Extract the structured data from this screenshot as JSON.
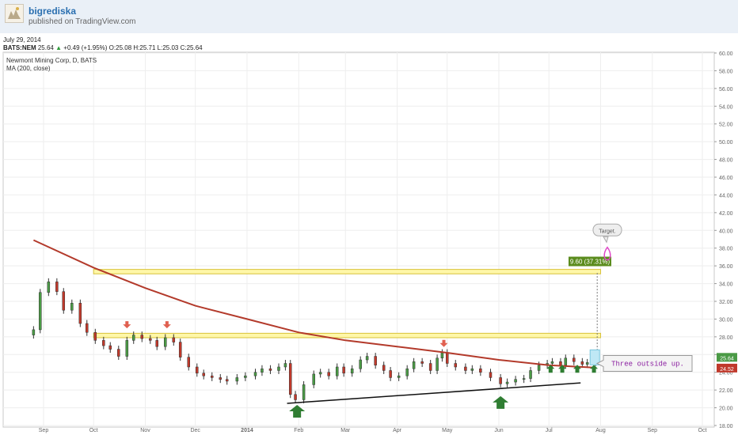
{
  "header": {
    "author": "bigrediska",
    "published": "published on TradingView.com",
    "date": "July 29, 2014",
    "symbol": "BATS:NEM",
    "last": "25.64",
    "change": "+0.49 (+1.95%)",
    "o_label": "O:",
    "o": "25.08",
    "h_label": "H:",
    "h": "25.71",
    "l_label": "L:",
    "l": "25.03",
    "c_label": "C:",
    "c": "25.64"
  },
  "legend": {
    "line1": "Newmont Mining Corp, D, BATS",
    "line2": "MA (200, close)"
  },
  "colors": {
    "up": "#4a9a45",
    "down": "#c0392b",
    "ma": "#b33a2b",
    "zone": "#fff7a8",
    "zone_border": "#d8c23a",
    "arrow_green": "#2f7d32",
    "arrow_red": "#e06050",
    "measure": "#5b8c1e",
    "callout_text": "#8a1ea0",
    "target_icon": "#e046c8"
  },
  "chart_data": {
    "type": "candlestick",
    "title": "Newmont Mining Corp, D, BATS",
    "xlabel": "",
    "ylabel": "",
    "ylim": [
      18,
      60
    ],
    "y_ticks": [
      "18.00",
      "20.00",
      "22.00",
      "24.00",
      "26.00",
      "28.00",
      "30.00",
      "32.00",
      "34.00",
      "36.00",
      "38.00",
      "40.00",
      "42.00",
      "44.00",
      "46.00",
      "48.00",
      "50.00",
      "52.00",
      "54.00",
      "56.00",
      "58.00",
      "60.00"
    ],
    "x_ticks": [
      "Sep",
      "Oct",
      "Nov",
      "Dec",
      "2014",
      "Feb",
      "Mar",
      "Apr",
      "May",
      "Jun",
      "Jul",
      "Aug",
      "Sep",
      "Oct"
    ],
    "x_tick_dates": [
      "2013-09-01",
      "2013-10-01",
      "2013-11-01",
      "2013-12-01",
      "2014-01-01",
      "2014-02-01",
      "2014-03-01",
      "2014-04-01",
      "2014-05-01",
      "2014-06-01",
      "2014-07-01",
      "2014-08-01",
      "2014-09-01",
      "2014-10-01"
    ],
    "price_close_series": [
      [
        "2013-08-26",
        28.8
      ],
      [
        "2013-08-30",
        33.0
      ],
      [
        "2013-09-04",
        34.2
      ],
      [
        "2013-09-09",
        33.1
      ],
      [
        "2013-09-13",
        31.0
      ],
      [
        "2013-09-18",
        31.8
      ],
      [
        "2013-09-23",
        29.5
      ],
      [
        "2013-09-27",
        28.5
      ],
      [
        "2013-10-02",
        27.6
      ],
      [
        "2013-10-07",
        27.0
      ],
      [
        "2013-10-11",
        26.6
      ],
      [
        "2013-10-16",
        25.8
      ],
      [
        "2013-10-21",
        27.6
      ],
      [
        "2013-10-25",
        28.2
      ],
      [
        "2013-10-30",
        27.8
      ],
      [
        "2013-11-04",
        27.6
      ],
      [
        "2013-11-08",
        26.9
      ],
      [
        "2013-11-13",
        27.9
      ],
      [
        "2013-11-18",
        27.4
      ],
      [
        "2013-11-22",
        25.7
      ],
      [
        "2013-11-27",
        24.6
      ],
      [
        "2013-12-02",
        23.9
      ],
      [
        "2013-12-06",
        23.6
      ],
      [
        "2013-12-11",
        23.4
      ],
      [
        "2013-12-16",
        23.2
      ],
      [
        "2013-12-20",
        23.0
      ],
      [
        "2013-12-26",
        23.4
      ],
      [
        "2013-12-31",
        23.6
      ],
      [
        "2014-01-06",
        24.0
      ],
      [
        "2014-01-10",
        24.4
      ],
      [
        "2014-01-15",
        24.2
      ],
      [
        "2014-01-20",
        24.6
      ],
      [
        "2014-01-24",
        25.0
      ],
      [
        "2014-01-27",
        21.5
      ],
      [
        "2014-01-30",
        20.9
      ],
      [
        "2014-02-04",
        22.6
      ],
      [
        "2014-02-10",
        23.8
      ],
      [
        "2014-02-14",
        24.0
      ],
      [
        "2014-02-19",
        23.6
      ],
      [
        "2014-02-24",
        24.6
      ],
      [
        "2014-02-28",
        23.9
      ],
      [
        "2014-03-05",
        24.4
      ],
      [
        "2014-03-10",
        25.4
      ],
      [
        "2014-03-14",
        25.8
      ],
      [
        "2014-03-19",
        24.8
      ],
      [
        "2014-03-24",
        24.2
      ],
      [
        "2014-03-28",
        23.4
      ],
      [
        "2014-04-02",
        23.6
      ],
      [
        "2014-04-07",
        24.4
      ],
      [
        "2014-04-11",
        25.2
      ],
      [
        "2014-04-16",
        25.0
      ],
      [
        "2014-04-21",
        24.2
      ],
      [
        "2014-04-25",
        25.6
      ],
      [
        "2014-04-28",
        26.2
      ],
      [
        "2014-05-01",
        25.0
      ],
      [
        "2014-05-06",
        24.6
      ],
      [
        "2014-05-12",
        24.2
      ],
      [
        "2014-05-16",
        24.4
      ],
      [
        "2014-05-21",
        24.0
      ],
      [
        "2014-05-27",
        23.4
      ],
      [
        "2014-06-02",
        22.7
      ],
      [
        "2014-06-06",
        22.9
      ],
      [
        "2014-06-11",
        23.2
      ],
      [
        "2014-06-16",
        23.3
      ],
      [
        "2014-06-20",
        24.2
      ],
      [
        "2014-06-25",
        24.8
      ],
      [
        "2014-06-30",
        25.0
      ],
      [
        "2014-07-03",
        25.2
      ],
      [
        "2014-07-08",
        24.8
      ],
      [
        "2014-07-11",
        25.6
      ],
      [
        "2014-07-16",
        25.2
      ],
      [
        "2014-07-21",
        24.9
      ],
      [
        "2014-07-24",
        25.1
      ],
      [
        "2014-07-29",
        25.64
      ]
    ],
    "ma200_series": [
      [
        "2013-08-26",
        38.9
      ],
      [
        "2013-10-01",
        35.8
      ],
      [
        "2013-11-01",
        33.5
      ],
      [
        "2013-12-01",
        31.5
      ],
      [
        "2014-01-01",
        30.0
      ],
      [
        "2014-02-01",
        28.5
      ],
      [
        "2014-03-01",
        27.6
      ],
      [
        "2014-04-01",
        26.9
      ],
      [
        "2014-05-01",
        26.2
      ],
      [
        "2014-06-01",
        25.4
      ],
      [
        "2014-07-01",
        24.8
      ],
      [
        "2014-07-29",
        24.52
      ]
    ],
    "last_price": 25.64,
    "last_ma": 24.52,
    "zones": [
      {
        "y_low": 35.1,
        "y_high": 35.6,
        "x_start": "2013-10-01",
        "x_end": "2014-08-01"
      },
      {
        "y_low": 27.9,
        "y_high": 28.4,
        "x_start": "2013-10-01",
        "x_end": "2014-08-01"
      }
    ],
    "trendline": {
      "from": [
        "2014-01-25",
        20.5
      ],
      "to": [
        "2014-07-20",
        22.8
      ]
    },
    "measure": {
      "label": "9.60 (37.31%)",
      "date": "2014-07-29",
      "from": 25.64,
      "to": 35.2
    },
    "callouts": [
      {
        "text": "Three outside up.",
        "date": "2014-08-10",
        "y": 25.0
      },
      {
        "text": "Target.",
        "date": "2014-08-05",
        "y": 40.0
      }
    ],
    "up_arrows": [
      [
        "2014-01-31",
        19.6
      ],
      [
        "2014-06-02",
        20.6
      ],
      [
        "2014-07-02",
        24.4
      ],
      [
        "2014-07-09",
        24.4
      ],
      [
        "2014-07-18",
        24.4
      ],
      [
        "2014-07-28",
        24.4
      ]
    ],
    "down_arrows": [
      [
        "2013-10-21",
        29.4
      ],
      [
        "2013-11-14",
        29.4
      ],
      [
        "2014-04-29",
        27.3
      ]
    ],
    "grid": true,
    "legend_position": "top-left"
  }
}
